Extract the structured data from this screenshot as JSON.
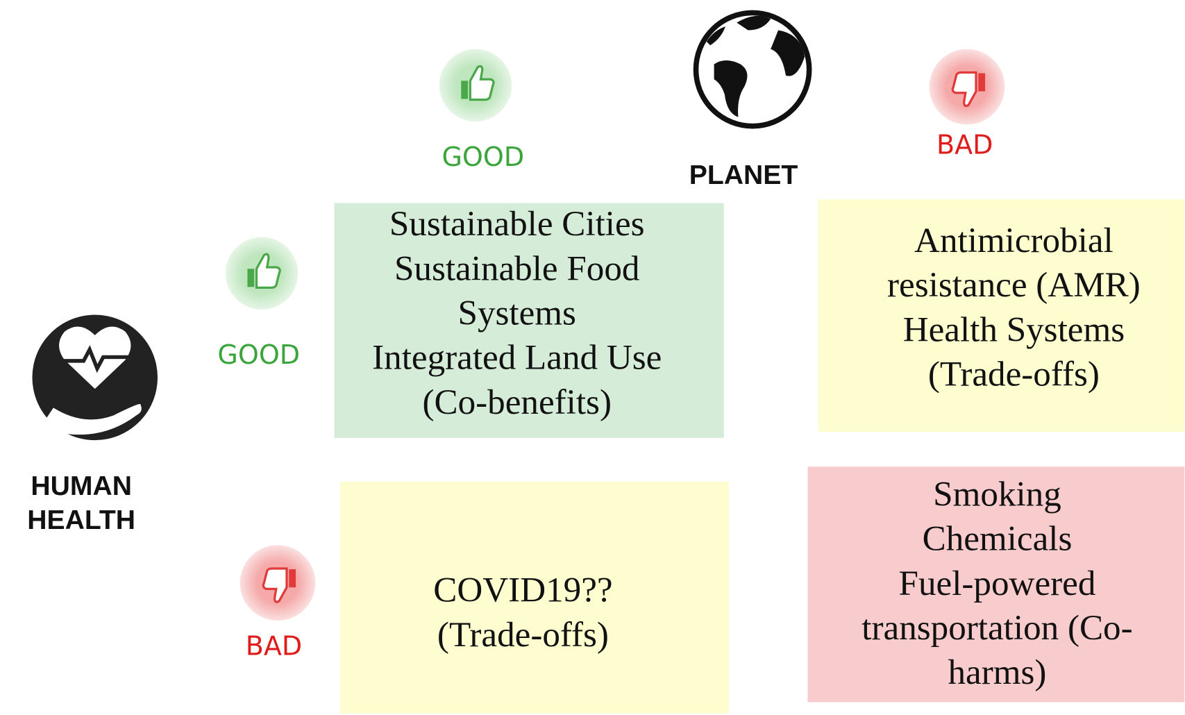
{
  "planet": {
    "label": "PLANET",
    "good": "GOOD",
    "bad": "BAD"
  },
  "human_health": {
    "label_lines": [
      "HUMAN",
      "HEALTH"
    ],
    "good": "GOOD",
    "bad": "BAD"
  },
  "quadrants": [
    {
      "lines": [
        "Sustainable Cities",
        "Sustainable Food",
        "Systems",
        "Integrated Land Use",
        "(Co-benefits)"
      ]
    },
    {
      "lines": [
        "Antimicrobial",
        "resistance (AMR)",
        "Health Systems",
        "(Trade-offs)"
      ]
    },
    {
      "lines": [
        "COVID19??",
        "(Trade-offs)"
      ]
    },
    {
      "lines": [
        "Smoking",
        "Chemicals",
        "Fuel-powered",
        "transportation (Co-",
        "harms)"
      ]
    }
  ]
}
